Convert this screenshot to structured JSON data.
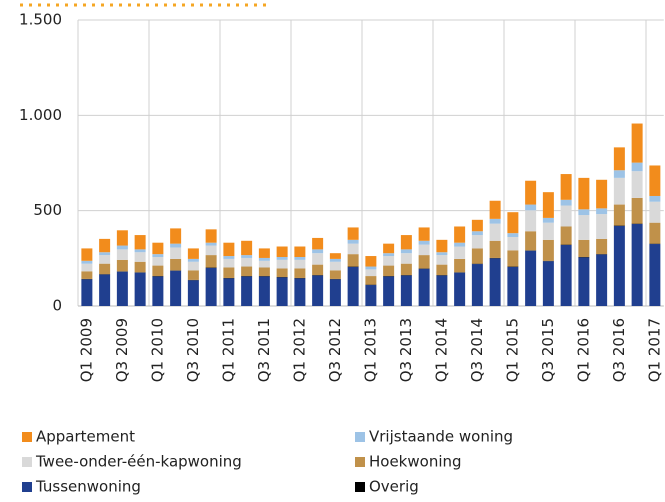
{
  "chart_data": {
    "type": "stacked_bar",
    "categories": [
      "Q1 2009",
      null,
      "Q3 2009",
      null,
      "Q1 2010",
      null,
      "Q3 2010",
      null,
      "Q1 2011",
      null,
      "Q3 2011",
      null,
      "Q1 2012",
      null,
      "Q3 2012",
      null,
      "Q1 2013",
      null,
      "Q3 2013",
      null,
      "Q1 2014",
      null,
      "Q3 2014",
      null,
      "Q1 2015",
      null,
      "Q3 2015",
      null,
      "Q1 2016",
      null,
      "Q3 2016",
      null,
      "Q1 2017"
    ],
    "series": [
      {
        "name": "Tussenwoning",
        "color": "#203f8f",
        "values": [
          140,
          165,
          180,
          175,
          155,
          185,
          135,
          200,
          145,
          155,
          155,
          150,
          145,
          160,
          140,
          205,
          110,
          155,
          160,
          195,
          160,
          175,
          220,
          250,
          205,
          290,
          235,
          320,
          255,
          270,
          420,
          430,
          325
        ]
      },
      {
        "name": "Overig",
        "color": "#000000",
        "values": [
          2,
          2,
          2,
          2,
          2,
          2,
          2,
          2,
          2,
          2,
          2,
          2,
          2,
          2,
          2,
          2,
          2,
          2,
          2,
          2,
          2,
          2,
          2,
          2,
          2,
          2,
          2,
          2,
          2,
          2,
          2,
          2,
          2
        ]
      },
      {
        "name": "Hoekwoning",
        "color": "#c0914a",
        "values": [
          40,
          55,
          60,
          55,
          55,
          60,
          50,
          65,
          55,
          50,
          45,
          45,
          50,
          55,
          45,
          65,
          45,
          55,
          60,
          70,
          55,
          70,
          80,
          90,
          85,
          100,
          110,
          95,
          90,
          80,
          110,
          135,
          110
        ]
      },
      {
        "name": "Twee-onder-één-kapwoning",
        "color": "#d9d9d9",
        "values": [
          40,
          45,
          55,
          50,
          45,
          60,
          45,
          50,
          45,
          45,
          35,
          45,
          45,
          60,
          45,
          55,
          35,
          50,
          55,
          55,
          50,
          65,
          70,
          90,
          70,
          110,
          90,
          110,
          130,
          130,
          140,
          140,
          110
        ]
      },
      {
        "name": "Vrijstaande woning",
        "color": "#9dc3e6",
        "values": [
          15,
          15,
          20,
          15,
          15,
          20,
          15,
          15,
          15,
          15,
          15,
          15,
          15,
          20,
          15,
          20,
          15,
          15,
          20,
          20,
          15,
          20,
          20,
          25,
          20,
          30,
          25,
          30,
          30,
          30,
          40,
          45,
          30
        ]
      },
      {
        "name": "Appartement",
        "color": "#f28c1c",
        "values": [
          65,
          70,
          80,
          75,
          60,
          80,
          55,
          70,
          70,
          75,
          50,
          55,
          55,
          60,
          30,
          65,
          55,
          50,
          75,
          70,
          65,
          85,
          60,
          95,
          110,
          125,
          135,
          135,
          165,
          150,
          120,
          205,
          160
        ]
      }
    ],
    "legend_order": [
      "Appartement",
      "Vrijstaande woning",
      "Twee-onder-één-kapwoning",
      "Hoekwoning",
      "Tussenwoning",
      "Overig"
    ],
    "ylim": [
      0,
      1500
    ],
    "yticks": [
      0,
      500,
      {
        "value": 1000,
        "label": "1.000"
      },
      {
        "value": 1500,
        "label": "1.500"
      }
    ],
    "grid": true
  }
}
